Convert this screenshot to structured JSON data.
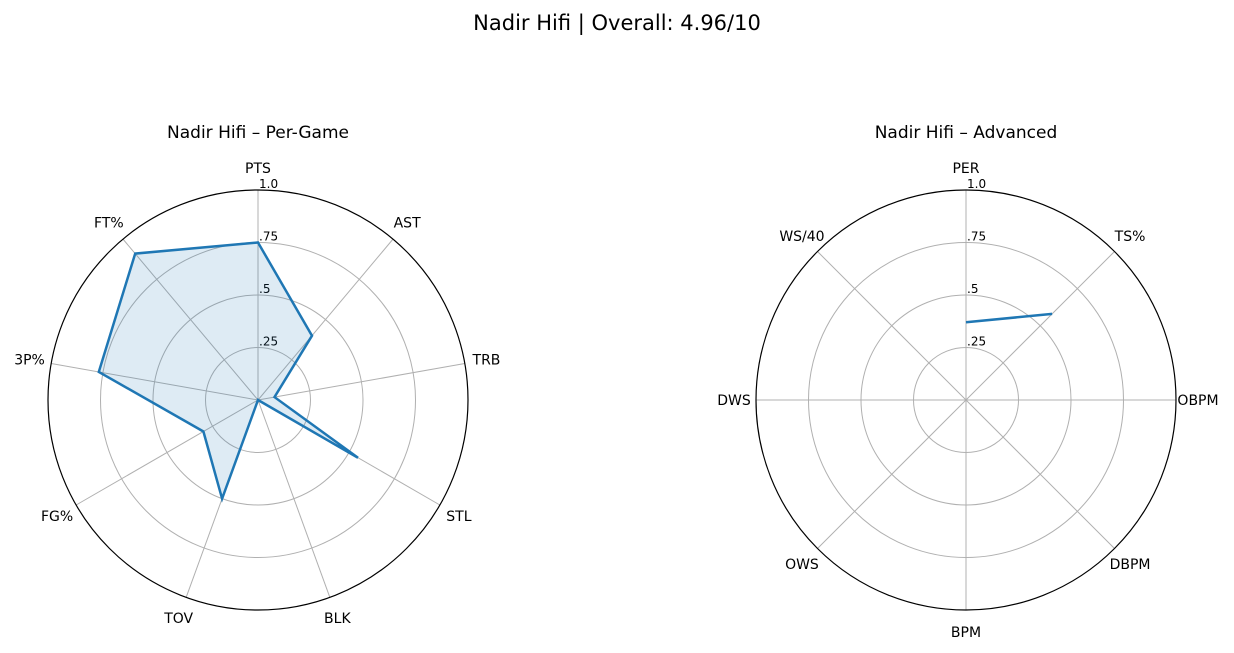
{
  "figure": {
    "suptitle": "Nadir Hifi | Overall: 4.96/10"
  },
  "chart_data": [
    {
      "type": "radar",
      "title": "Nadir Hifi – Per-Game",
      "categories": [
        "PTS",
        "AST",
        "TRB",
        "STL",
        "BLK",
        "TOV",
        "FG%",
        "3P%",
        "FT%"
      ],
      "rlim": [
        0,
        1
      ],
      "rticks": [
        0.25,
        0.5,
        0.75,
        1.0
      ],
      "rtick_labels": [
        ".25",
        ".5",
        ".75",
        "1.0"
      ],
      "grid": true,
      "fill": true,
      "color": "#1f77b4",
      "series": [
        {
          "values": [
            0.75,
            0.4,
            0.08,
            0.55,
            0.0,
            0.5,
            0.3,
            0.77,
            0.91
          ]
        }
      ]
    },
    {
      "type": "radar",
      "title": "Nadir Hifi – Advanced",
      "categories": [
        "PER",
        "TS%",
        "OBPM",
        "DBPM",
        "BPM",
        "OWS",
        "DWS",
        "WS/40"
      ],
      "rlim": [
        0,
        1
      ],
      "rticks": [
        0.25,
        0.5,
        0.75,
        1.0
      ],
      "rtick_labels": [
        ".25",
        ".5",
        ".75",
        "1.0"
      ],
      "grid": true,
      "fill": false,
      "color": "#1f77b4",
      "series": [
        {
          "values": [
            0.37,
            0.58,
            null,
            null,
            null,
            null,
            null,
            null
          ]
        }
      ]
    }
  ]
}
